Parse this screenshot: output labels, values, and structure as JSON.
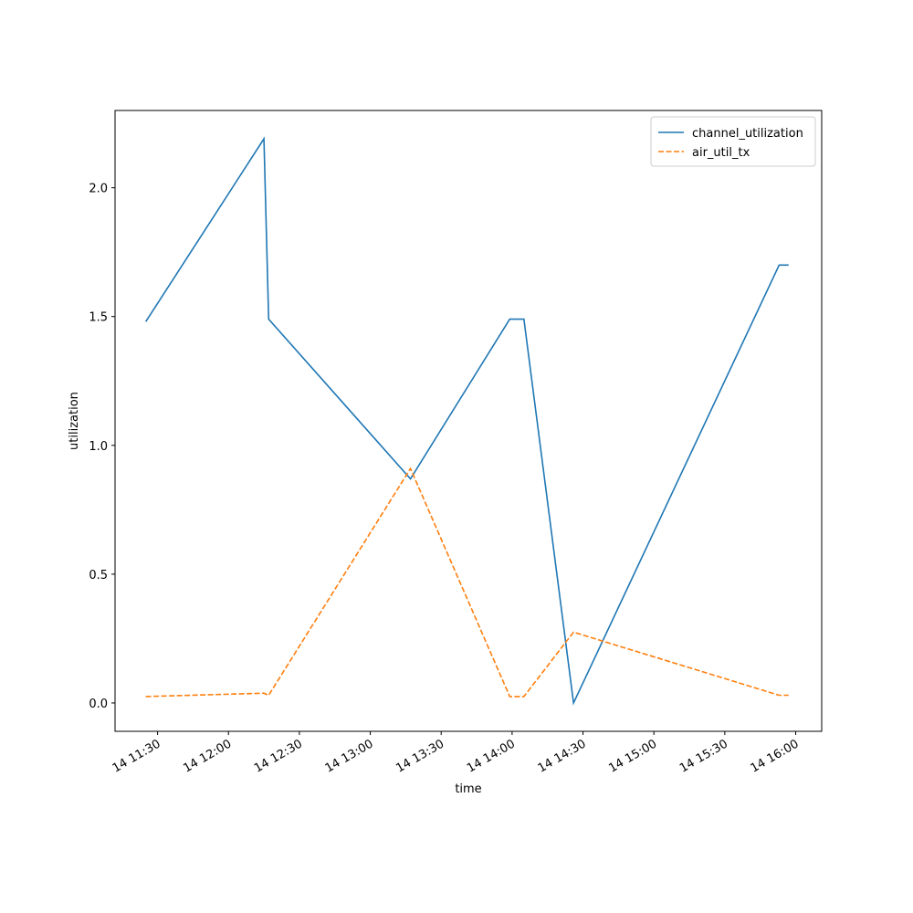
{
  "chart_data": {
    "type": "line",
    "x_label": "time",
    "y_label": "utilization",
    "x": [
      "14 11:25",
      "14 12:15",
      "14 12:17",
      "14 13:17",
      "14 13:59",
      "14 14:05",
      "14 14:26",
      "14 15:53",
      "14 15:57"
    ],
    "series": [
      {
        "name": "channel_utilization",
        "color": "#1f77b4",
        "linestyle": "solid",
        "values": [
          1.48,
          2.19,
          1.49,
          0.87,
          1.49,
          1.49,
          0.0,
          1.7,
          1.7
        ]
      },
      {
        "name": "air_util_tx",
        "color": "#ff7f0e",
        "linestyle": "dashed",
        "values": [
          0.025,
          0.038,
          0.03,
          0.91,
          0.025,
          0.025,
          0.275,
          0.03,
          0.03
        ]
      }
    ],
    "xlim": [
      "14 11:12",
      "14 16:11"
    ],
    "xticks": [
      "14 11:30",
      "14 12:00",
      "14 12:30",
      "14 13:00",
      "14 13:30",
      "14 14:00",
      "14 14:30",
      "14 15:00",
      "14 15:30",
      "14 16:00"
    ],
    "ylim": [
      -0.11,
      2.3
    ],
    "yticks": [
      {
        "value": 0,
        "label": "0.0"
      },
      {
        "value": 0.5,
        "label": "0.5"
      },
      {
        "value": 1,
        "label": "1.0"
      },
      {
        "value": 1.5,
        "label": "1.5"
      },
      {
        "value": 2,
        "label": "2.0"
      }
    ],
    "grid": false,
    "legend": "upper right"
  }
}
